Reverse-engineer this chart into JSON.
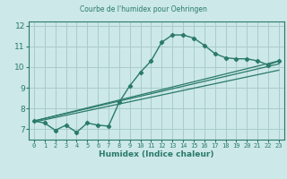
{
  "title": "Courbe de l'humidex pour Oehringen",
  "xlabel": "Humidex (Indice chaleur)",
  "bg_color": "#cce8e8",
  "grid_color": "#aacccc",
  "line_color": "#2a7a6a",
  "xlim": [
    -0.5,
    23.5
  ],
  "ylim": [
    6.5,
    12.2
  ],
  "yticks": [
    7,
    8,
    9,
    10,
    11,
    12
  ],
  "xticks": [
    0,
    1,
    2,
    3,
    4,
    5,
    6,
    7,
    8,
    9,
    10,
    11,
    12,
    13,
    14,
    15,
    16,
    17,
    18,
    19,
    20,
    21,
    22,
    23
  ],
  "main_x": [
    0,
    1,
    2,
    3,
    4,
    5,
    6,
    7,
    8,
    9,
    10,
    11,
    12,
    13,
    14,
    15,
    16,
    17,
    18,
    19,
    20,
    21,
    22,
    23
  ],
  "main_y": [
    7.4,
    7.3,
    6.95,
    7.2,
    6.85,
    7.3,
    7.2,
    7.15,
    8.3,
    9.1,
    9.75,
    10.3,
    11.2,
    11.55,
    11.55,
    11.4,
    11.05,
    10.65,
    10.45,
    10.4,
    10.4,
    10.3,
    10.1,
    10.3
  ],
  "line1_x": [
    0,
    23
  ],
  "line1_y": [
    7.4,
    10.3
  ],
  "line2_x": [
    0,
    23
  ],
  "line2_y": [
    7.4,
    10.15
  ],
  "line3_x": [
    0,
    23
  ],
  "line3_y": [
    7.35,
    9.85
  ]
}
